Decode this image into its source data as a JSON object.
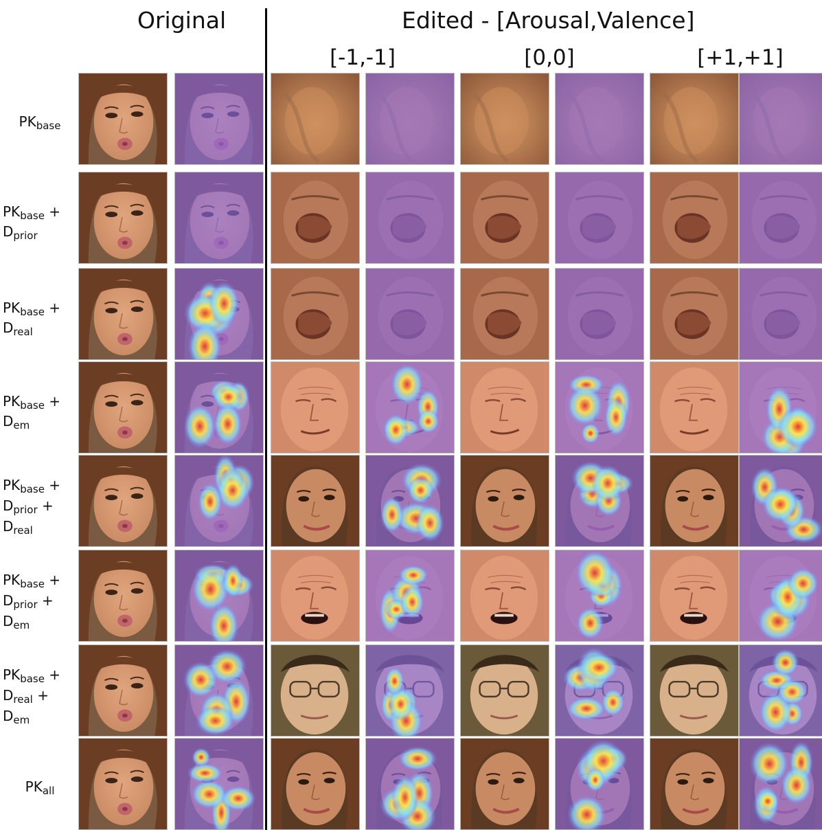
{
  "header": {
    "original": "Original",
    "edited": "Edited - [Arousal,Valence]"
  },
  "conditions": [
    "[-1,-1]",
    "[0,0]",
    "[+1,+1]"
  ],
  "rows": [
    {
      "lines": [
        {
          "main": "PK",
          "sub": "base",
          "tail": ""
        }
      ],
      "edited_face": "smudged",
      "heatmap": "none"
    },
    {
      "lines": [
        {
          "main": "PK",
          "sub": "base",
          "tail": " +"
        },
        {
          "main": "D",
          "sub": "prior",
          "tail": ""
        }
      ],
      "edited_face": "distorted",
      "heatmap": "none"
    },
    {
      "lines": [
        {
          "main": "PK",
          "sub": "base",
          "tail": " +"
        },
        {
          "main": "D",
          "sub": "real",
          "tail": ""
        }
      ],
      "edited_face": "distorted",
      "heatmap": "original-only"
    },
    {
      "lines": [
        {
          "main": "PK",
          "sub": "base",
          "tail": " +"
        },
        {
          "main": "D",
          "sub": "em",
          "tail": ""
        }
      ],
      "edited_face": "aged",
      "heatmap": "full"
    },
    {
      "lines": [
        {
          "main": "PK",
          "sub": "base",
          "tail": " +"
        },
        {
          "main": "D",
          "sub": "prior",
          "tail": " +"
        },
        {
          "main": "D",
          "sub": "real",
          "tail": ""
        }
      ],
      "edited_face": "realistic",
      "heatmap": "full"
    },
    {
      "lines": [
        {
          "main": "PK",
          "sub": "base",
          "tail": " +"
        },
        {
          "main": "D",
          "sub": "prior",
          "tail": " +"
        },
        {
          "main": "D",
          "sub": "em",
          "tail": ""
        }
      ],
      "edited_face": "aged-open-mouth",
      "heatmap": "full"
    },
    {
      "lines": [
        {
          "main": "PK",
          "sub": "base",
          "tail": " +"
        },
        {
          "main": "D",
          "sub": "real",
          "tail": " +"
        },
        {
          "main": "D",
          "sub": "em",
          "tail": ""
        }
      ],
      "edited_face": "glasses",
      "heatmap": "full"
    },
    {
      "lines": [
        {
          "main": "PK",
          "sub": "all",
          "tail": ""
        }
      ],
      "edited_face": "realistic",
      "heatmap": "full"
    }
  ],
  "colors": {
    "skin": "#c98a62",
    "hair": "#6b3d22",
    "lips": "#c2646b",
    "heat_base": "#8a6ae8",
    "heat_hot": "#ffe34a",
    "heat_peak": "#e8322a"
  }
}
